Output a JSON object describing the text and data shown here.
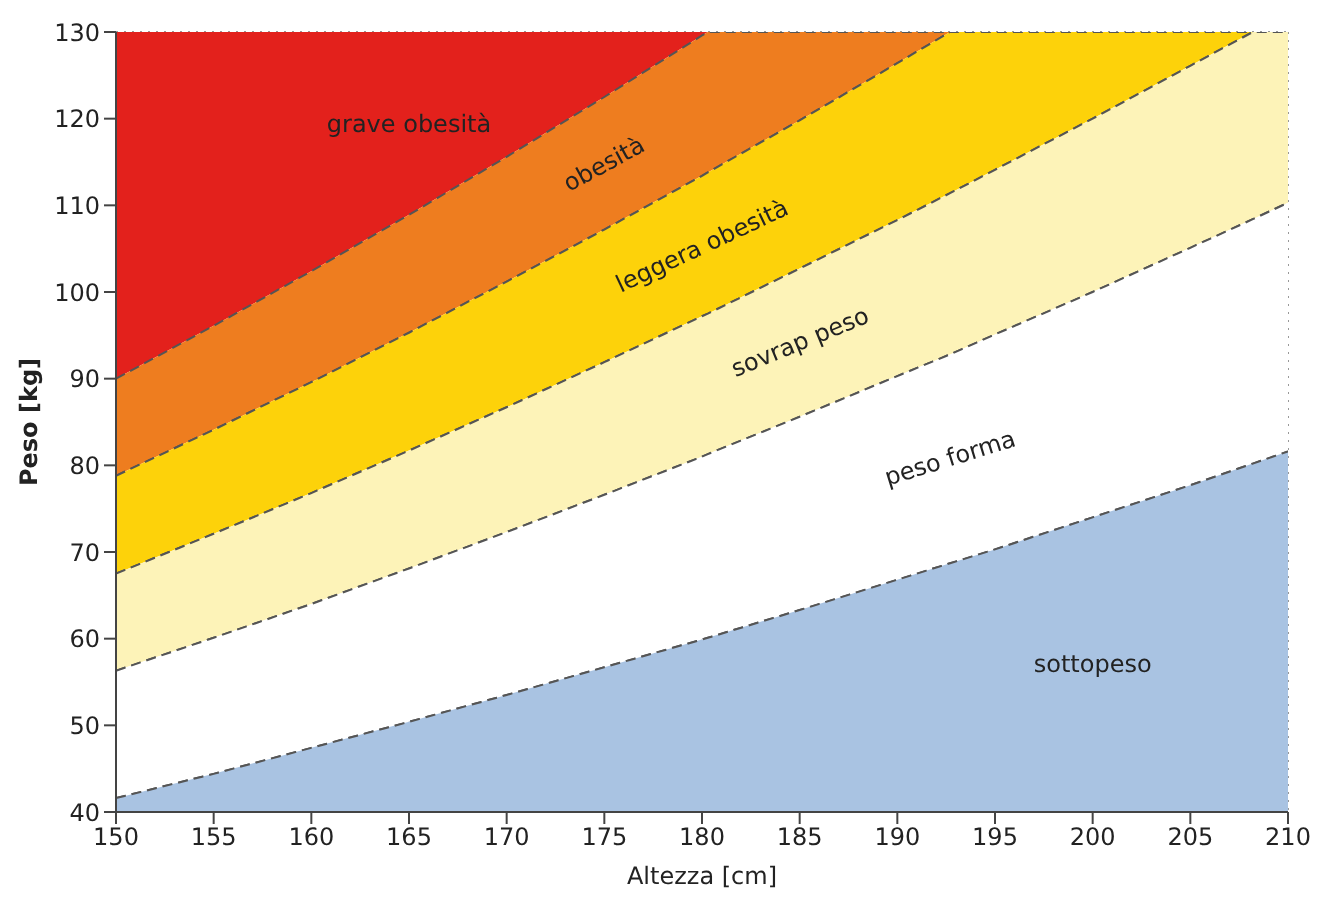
{
  "chart_data": {
    "type": "area",
    "xlabel": "Altezza [cm]",
    "ylabel": "Peso [kg]",
    "xlim": [
      150,
      210
    ],
    "ylim": [
      40,
      130
    ],
    "xticks": [
      150,
      155,
      160,
      165,
      170,
      175,
      180,
      185,
      190,
      195,
      200,
      205,
      210
    ],
    "yticks": [
      40,
      50,
      60,
      70,
      80,
      90,
      100,
      110,
      120,
      130
    ],
    "grid": true,
    "line_style": "dashed",
    "legend": false,
    "x": [
      150,
      155,
      160,
      165,
      170,
      175,
      180,
      180.3,
      185,
      190,
      192.7,
      195,
      200,
      205,
      208.2,
      210
    ],
    "series": [
      {
        "name": "grave obesità",
        "color": "#e3211c",
        "values": [
          130,
          130,
          130,
          130,
          130,
          130,
          130,
          130,
          130,
          130,
          130,
          130,
          130,
          130,
          130,
          130
        ]
      },
      {
        "name": "obesità",
        "color": "#ee7d1f",
        "values": [
          90,
          96.1,
          102.4,
          108.9,
          115.6,
          122.5,
          129.6,
          130,
          130,
          130,
          130,
          130,
          130,
          130,
          130,
          130
        ]
      },
      {
        "name": "leggera obesità",
        "color": "#fdd20a",
        "values": [
          78.8,
          84.1,
          89.6,
          95.3,
          101.2,
          107.2,
          113.4,
          113.8,
          119.8,
          126.4,
          130,
          130,
          130,
          130,
          130,
          130
        ]
      },
      {
        "name": "sovrap peso",
        "color": "#fdf3b8",
        "values": [
          67.5,
          72.1,
          76.8,
          81.7,
          86.7,
          91.9,
          97.2,
          97.5,
          102.7,
          108.3,
          111.4,
          114.1,
          120.0,
          126.1,
          130,
          130
        ]
      },
      {
        "name": "peso forma",
        "color": "#ffffff",
        "values": [
          56.3,
          60.1,
          64.0,
          68.1,
          72.3,
          76.6,
          81.0,
          81.3,
          85.6,
          90.3,
          92.8,
          95.1,
          100.0,
          105.1,
          108.4,
          110.3
        ]
      },
      {
        "name": "sottopeso",
        "color": "#a9c3e2",
        "values": [
          41.6,
          44.4,
          47.4,
          50.4,
          53.5,
          56.7,
          59.9,
          60.1,
          63.3,
          66.8,
          68.7,
          70.3,
          74.0,
          77.7,
          80.2,
          81.6
        ]
      }
    ]
  }
}
